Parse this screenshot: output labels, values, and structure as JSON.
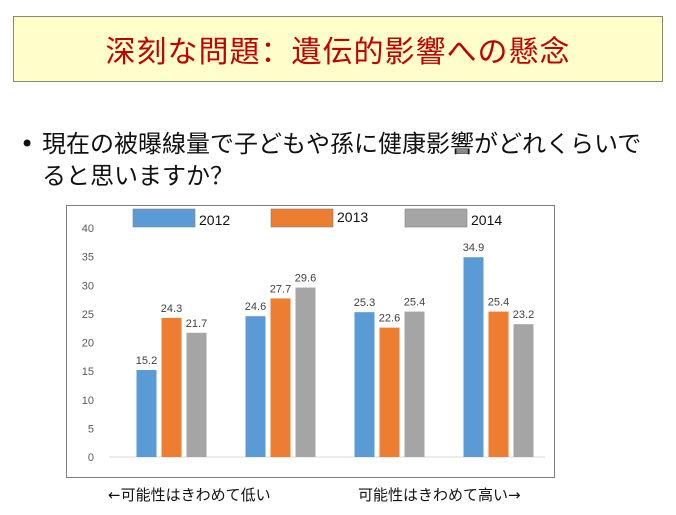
{
  "title": "深刻な問題：遺伝的影響への懸念",
  "question": "現在の被曝線量で子どもや孫に健康影響がどれくらいでると思いますか？",
  "bullet": "•",
  "captions": {
    "left": "←可能性はきわめて低い",
    "right": "可能性はきわめて高い→"
  },
  "chart_data": {
    "type": "bar",
    "categories": [
      "",
      "",
      "",
      ""
    ],
    "series": [
      {
        "name": "2012",
        "values": [
          15.2,
          24.6,
          25.3,
          34.9
        ],
        "color": "#5b9bd5"
      },
      {
        "name": "2013",
        "values": [
          24.3,
          27.7,
          22.6,
          25.4
        ],
        "color": "#ed7d31"
      },
      {
        "name": "2014",
        "values": [
          21.7,
          29.6,
          25.4,
          23.2
        ],
        "color": "#a5a5a5"
      }
    ],
    "yticks": [
      0,
      5,
      10,
      15,
      20,
      25,
      30,
      35,
      40
    ],
    "ylim": [
      0,
      40
    ],
    "grid": false,
    "legend": "top"
  }
}
